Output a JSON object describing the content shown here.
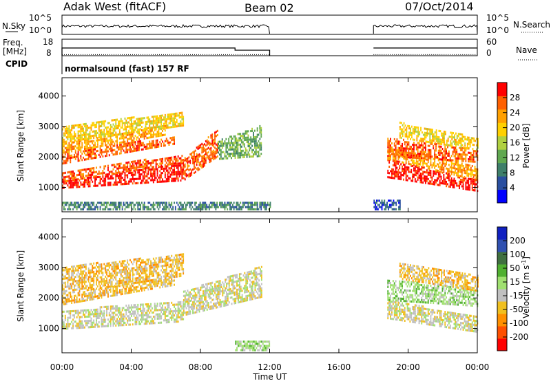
{
  "header": {
    "station": "Adak West (fitACF)",
    "beam": "Beam 02",
    "date": "07/Oct/2014"
  },
  "chart_data": [
    {
      "type": "line",
      "panel": "noise",
      "left_label": "N.Sky",
      "right_label": "N.Search",
      "left_ticks": [
        "10^5",
        "10^0"
      ],
      "right_ticks": [
        "10^5",
        "10^0"
      ],
      "segments": [
        {
          "x_start": "00:00",
          "x_end": "12:00"
        },
        {
          "x_start": "18:00",
          "x_end": "24:00"
        }
      ]
    },
    {
      "type": "line",
      "panel": "frequency",
      "left_label": "Freq.",
      "left_unit": "[MHz]",
      "right_label": "Nave",
      "left_ticks": [
        18,
        8
      ],
      "right_ticks": [
        60,
        0
      ],
      "frequency_steps": [
        {
          "x": "00:00",
          "freq": 12.5
        },
        {
          "x": "10:00",
          "freq": 10.5
        },
        {
          "x": "12:00",
          "freq": null
        },
        {
          "x": "18:00",
          "freq": 12.5
        },
        {
          "x": "24:00",
          "freq": 12.5
        }
      ],
      "nave_level": 2
    },
    {
      "type": "table",
      "panel": "cpid",
      "label": "CPID",
      "value": "normalsound (fast) 157 RF"
    },
    {
      "type": "heatmap",
      "panel": "power",
      "ylabel": "Slant Range [km]",
      "yticks": [
        1000,
        2000,
        3000,
        4000
      ],
      "ylim": [
        200,
        4600
      ],
      "xlim": [
        "00:00",
        "24:00"
      ],
      "colorbar_label": "Power [dB]",
      "colorbar_ticks": [
        4,
        8,
        12,
        16,
        20,
        24,
        28
      ],
      "colors": [
        "#0000ff",
        "#2a4fa0",
        "#3e7f6a",
        "#60a850",
        "#b0d040",
        "#ffd000",
        "#ffa000",
        "#ff6000",
        "#ff0000"
      ],
      "bands": [
        {
          "t0": 0.0,
          "t1": 7.0,
          "r0": 950,
          "r1": 1150,
          "r0e": 1200,
          "r1e": 1800,
          "level": 8
        },
        {
          "t0": 0.0,
          "t1": 7.0,
          "r0": 1150,
          "r1": 1500,
          "r0e": 1800,
          "r1e": 2050,
          "level": 7
        },
        {
          "t0": 0.0,
          "t1": 6.5,
          "r0": 1750,
          "r1": 2100,
          "r0e": 2400,
          "r1e": 2650,
          "level": 7
        },
        {
          "t0": 0.0,
          "t1": 6.0,
          "r0": 2100,
          "r1": 2450,
          "r0e": 2700,
          "r1e": 3000,
          "level": 6
        },
        {
          "t0": 0.0,
          "t1": 7.0,
          "r0": 2450,
          "r1": 3000,
          "r0e": 3000,
          "r1e": 3450,
          "level": 5
        },
        {
          "t0": 7.0,
          "t1": 9.0,
          "r0": 1200,
          "r1": 1900,
          "r0e": 2000,
          "r1e": 2900,
          "level": 7
        },
        {
          "t0": 9.0,
          "t1": 11.5,
          "r0": 1900,
          "r1": 2500,
          "r0e": 2000,
          "r1e": 3000,
          "level": 3
        },
        {
          "t0": 18.8,
          "t1": 24.0,
          "r0": 1300,
          "r1": 1900,
          "r0e": 850,
          "r1e": 1200,
          "level": 8
        },
        {
          "t0": 18.8,
          "t1": 24.0,
          "r0": 1900,
          "r1": 2300,
          "r0e": 1200,
          "r1e": 1650,
          "level": 6
        },
        {
          "t0": 18.8,
          "t1": 24.0,
          "r0": 2000,
          "r1": 2600,
          "r0e": 1800,
          "r1e": 2200,
          "level": 7
        },
        {
          "t0": 19.5,
          "t1": 24.0,
          "r0": 2600,
          "r1": 3100,
          "r0e": 2200,
          "r1e": 2600,
          "level": 5
        },
        {
          "t0": 0.0,
          "t1": 12.0,
          "r0": 250,
          "r1": 500,
          "r0e": 250,
          "r1e": 500,
          "level": 2
        },
        {
          "t0": 18.0,
          "t1": 19.5,
          "r0": 250,
          "r1": 600,
          "r0e": 250,
          "r1e": 600,
          "level": 1
        }
      ]
    },
    {
      "type": "heatmap",
      "panel": "velocity",
      "ylabel": "Slant Range [km]",
      "yticks": [
        1000,
        2000,
        3000,
        4000
      ],
      "ylim": [
        200,
        4600
      ],
      "xlim": [
        "00:00",
        "24:00"
      ],
      "xticks": [
        "00:00",
        "04:00",
        "08:00",
        "12:00",
        "16:00",
        "20:00",
        "00:00"
      ],
      "xlabel": "Time UT",
      "colorbar_label": "Velocity [m s",
      "colorbar_label_sup": "-1",
      "colorbar_label_end": "]",
      "colorbar_ticks": [
        200,
        100,
        50,
        15,
        -15,
        -50,
        -100,
        -200
      ],
      "colors": [
        "#1020c0",
        "#3050b0",
        "#407040",
        "#50b030",
        "#a0e070",
        "#c0c0c0",
        "#f0c020",
        "#ff9000",
        "#ff5000",
        "#ff0000"
      ],
      "bands": [
        {
          "t0": 0.0,
          "t1": 7.0,
          "r0": 950,
          "r1": 1550,
          "r0e": 1200,
          "r1e": 1900,
          "level": 5
        },
        {
          "t0": 0.0,
          "t1": 6.5,
          "r0": 1750,
          "r1": 2100,
          "r0e": 2400,
          "r1e": 2700,
          "level": 6
        },
        {
          "t0": 0.0,
          "t1": 7.0,
          "r0": 2100,
          "r1": 3000,
          "r0e": 2700,
          "r1e": 3400,
          "level": 6
        },
        {
          "t0": 7.0,
          "t1": 11.5,
          "r0": 1400,
          "r1": 2200,
          "r0e": 2000,
          "r1e": 3000,
          "level": 5
        },
        {
          "t0": 18.8,
          "t1": 24.0,
          "r0": 1300,
          "r1": 1900,
          "r0e": 850,
          "r1e": 1350,
          "level": 5
        },
        {
          "t0": 18.8,
          "t1": 24.0,
          "r0": 1900,
          "r1": 2600,
          "r0e": 1700,
          "r1e": 2200,
          "level": 4
        },
        {
          "t0": 19.5,
          "t1": 24.0,
          "r0": 2600,
          "r1": 3100,
          "r0e": 2200,
          "r1e": 2700,
          "level": 6
        },
        {
          "t0": 10.0,
          "t1": 12.0,
          "r0": 250,
          "r1": 550,
          "r0e": 250,
          "r1e": 550,
          "level": 4
        }
      ]
    }
  ]
}
